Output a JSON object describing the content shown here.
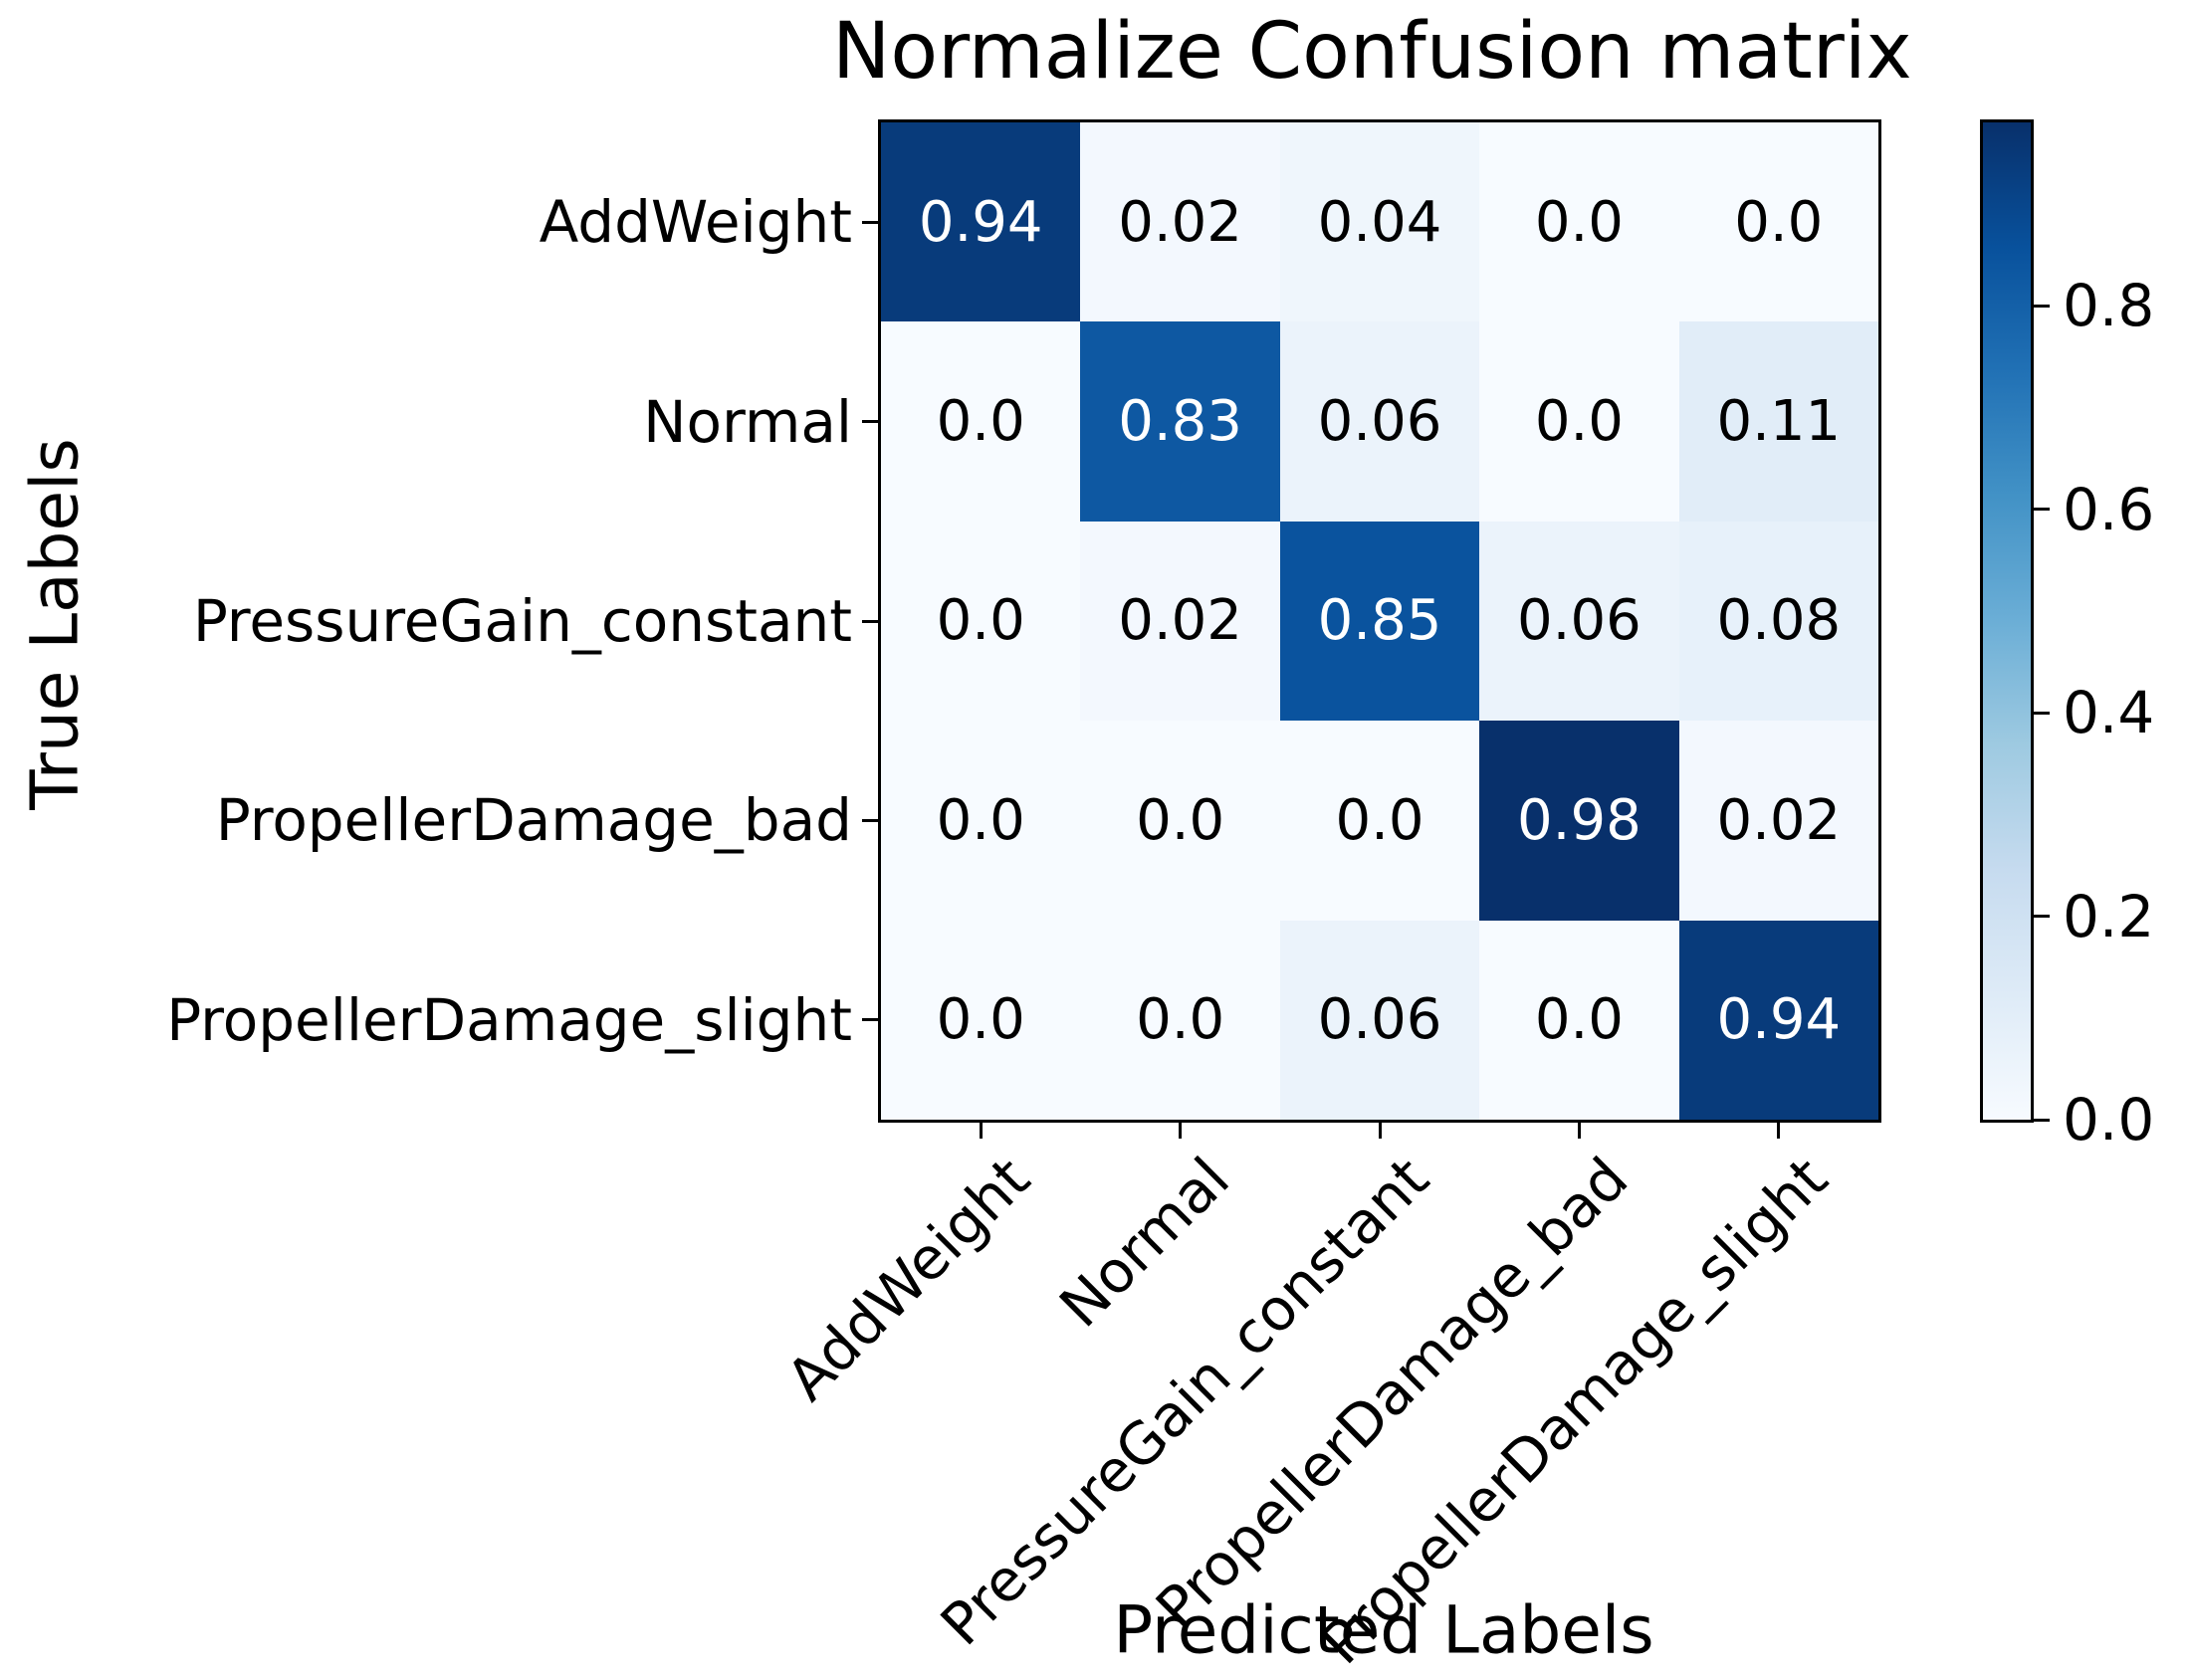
{
  "title": "Normalize Confusion matrix",
  "axes": {
    "x_label": "Predicted Labels",
    "y_label": "True Labels"
  },
  "chart_data": {
    "type": "heatmap",
    "title": "Normalize Confusion matrix",
    "xlabel": "Predicted Labels",
    "ylabel": "True Labels",
    "categories": [
      "AddWeight",
      "Normal",
      "PressureGain_constant",
      "PropellerDamage_bad",
      "PropellerDamage_slight"
    ],
    "matrix": [
      [
        0.94,
        0.02,
        0.04,
        0.0,
        0.0
      ],
      [
        0.0,
        0.83,
        0.06,
        0.0,
        0.11
      ],
      [
        0.0,
        0.02,
        0.85,
        0.06,
        0.08
      ],
      [
        0.0,
        0.0,
        0.0,
        0.98,
        0.02
      ],
      [
        0.0,
        0.0,
        0.06,
        0.0,
        0.94
      ]
    ],
    "cell_labels": [
      [
        "0.94",
        "0.02",
        "0.04",
        "0.0",
        "0.0"
      ],
      [
        "0.0",
        "0.83",
        "0.06",
        "0.0",
        "0.11"
      ],
      [
        "0.0",
        "0.02",
        "0.85",
        "0.06",
        "0.08"
      ],
      [
        "0.0",
        "0.0",
        "0.0",
        "0.98",
        "0.02"
      ],
      [
        "0.0",
        "0.0",
        "0.06",
        "0.0",
        "0.94"
      ]
    ],
    "colormap": "Blues",
    "vmin": 0.0,
    "vmax": 0.98,
    "colorbar_tick_labels": [
      "0.8",
      "0.6",
      "0.4",
      "0.2",
      "0.0"
    ],
    "colorbar_tick_values": [
      0.8,
      0.6,
      0.4,
      0.2,
      0.0
    ],
    "legend_position": "right-colorbar",
    "grid": false,
    "value_colors": {
      "0.0": "#f7fbff",
      "0.02": "#f3f8fe",
      "0.04": "#eff6fc",
      "0.06": "#ebf3fb",
      "0.08": "#e7f1fa",
      "0.11": "#e1edf8",
      "0.83": "#0e58a2",
      "0.85": "#0a539e",
      "0.94": "#083b7b",
      "0.98": "#08306b"
    },
    "text_colors": {
      "on_light": "#000000",
      "on_dark": "#ffffff"
    },
    "colorbar_gradient_top_to_bottom": [
      "#08306b",
      "#08519c",
      "#2171b5",
      "#4292c6",
      "#6baed6",
      "#9ecae1",
      "#c6dbef",
      "#deebf7",
      "#f7fbff"
    ]
  }
}
